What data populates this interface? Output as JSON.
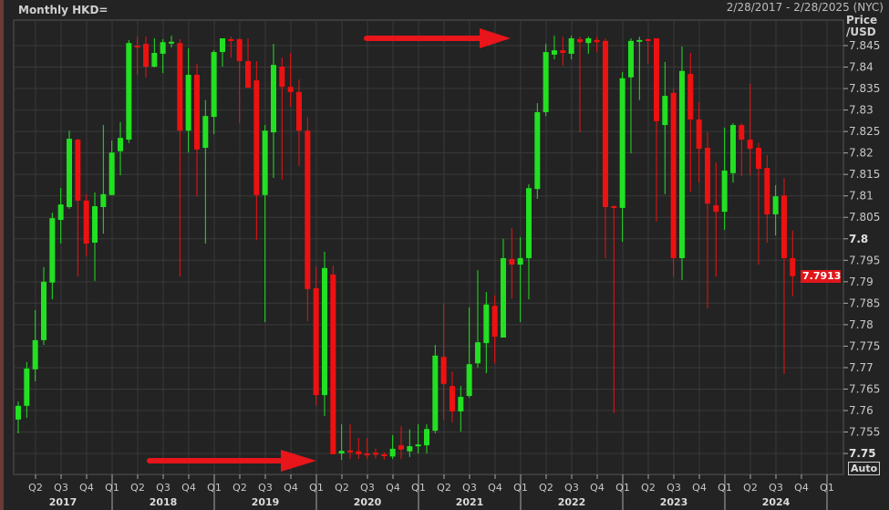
{
  "header": {
    "title": "Monthly HKD=",
    "date_range": "2/28/2017 - 2/28/2025 (NYC)"
  },
  "chart_data": {
    "type": "candlestick",
    "title": "Monthly HKD=",
    "ylabel": "Price /USD",
    "ylabel_lines": [
      "Price",
      "/USD"
    ],
    "ylim": [
      7.7475,
      7.8475
    ],
    "yticks": [
      "7.845",
      "7.84",
      "7.835",
      "7.83",
      "7.825",
      "7.82",
      "7.815",
      "7.81",
      "7.805",
      "7.8",
      "7.795",
      "7.79",
      "7.785",
      "7.78",
      "7.775",
      "7.77",
      "7.765",
      "7.76",
      "7.755",
      "7.75"
    ],
    "bold_yticks": [
      "7.8",
      "7.75"
    ],
    "last_price": "7.7913",
    "auto_label": "Auto",
    "quarter_labels": [
      "Q2",
      "Q3",
      "Q4",
      "Q1",
      "Q2",
      "Q3",
      "Q4",
      "Q1",
      "Q2",
      "Q3",
      "Q4",
      "Q1",
      "Q2",
      "Q3",
      "Q4",
      "Q1",
      "Q2",
      "Q3",
      "Q4",
      "Q1",
      "Q2",
      "Q3",
      "Q4",
      "Q1",
      "Q2",
      "Q3",
      "Q4",
      "Q1",
      "Q2",
      "Q3",
      "Q4",
      "Q1"
    ],
    "year_labels": [
      "2017",
      "2018",
      "2019",
      "2020",
      "2021",
      "2022",
      "2023",
      "2024"
    ],
    "grid": true,
    "colors": {
      "up": "#22e022",
      "down": "#ee1111",
      "background": "#232323",
      "grid": "#3a3a3a",
      "arrow": "#e8151a"
    },
    "ohlc_fields": [
      "open",
      "high",
      "low",
      "close"
    ],
    "ohlc": [
      [
        7.7579,
        7.7621,
        7.7547,
        7.7611
      ],
      [
        7.7611,
        7.7713,
        7.7583,
        7.7698
      ],
      [
        7.7696,
        7.7834,
        7.7668,
        7.7764
      ],
      [
        7.7764,
        7.7934,
        7.7753,
        7.79
      ],
      [
        7.7898,
        7.8061,
        7.7859,
        7.8048
      ],
      [
        7.8044,
        7.8118,
        7.7989,
        7.808
      ],
      [
        7.8074,
        7.8252,
        7.807,
        7.8233
      ],
      [
        7.8231,
        7.8233,
        7.7912,
        7.8089
      ],
      [
        7.8089,
        7.8104,
        7.7959,
        7.7989
      ],
      [
        7.7991,
        7.8108,
        7.7902,
        7.8076
      ],
      [
        7.8074,
        7.8265,
        7.8012,
        7.8104
      ],
      [
        7.8102,
        7.8229,
        7.8102,
        7.8201
      ],
      [
        7.8204,
        7.8272,
        7.8148,
        7.8235
      ],
      [
        7.8231,
        7.8463,
        7.8223,
        7.8456
      ],
      [
        7.845,
        7.8471,
        7.8382,
        7.8448
      ],
      [
        7.8454,
        7.8471,
        7.8376,
        7.8401
      ],
      [
        7.8401,
        7.8467,
        7.8399,
        7.8433
      ],
      [
        7.8431,
        7.8465,
        7.8386,
        7.8458
      ],
      [
        7.8455,
        7.8473,
        7.8446,
        7.8459
      ],
      [
        7.8456,
        7.8465,
        7.7912,
        7.8252
      ],
      [
        7.8252,
        7.8444,
        7.8201,
        7.8382
      ],
      [
        7.8382,
        7.8408,
        7.8099,
        7.8208
      ],
      [
        7.8212,
        7.8323,
        7.7989,
        7.8286
      ],
      [
        7.8284,
        7.8439,
        7.8244,
        7.8435
      ],
      [
        7.8435,
        7.8467,
        7.8401,
        7.8467
      ],
      [
        7.8465,
        7.8471,
        7.8422,
        7.8463
      ],
      [
        7.8465,
        7.8467,
        7.8269,
        7.8414
      ],
      [
        7.8414,
        7.8467,
        7.8352,
        7.8352
      ],
      [
        7.8369,
        7.8414,
        7.7997,
        7.8102
      ],
      [
        7.8102,
        7.8265,
        7.7806,
        7.8252
      ],
      [
        7.8248,
        7.8454,
        7.8142,
        7.8405
      ],
      [
        7.8401,
        7.8422,
        7.8138,
        7.8354
      ],
      [
        7.8354,
        7.8433,
        7.8308,
        7.8342
      ],
      [
        7.8342,
        7.8371,
        7.817,
        7.8252
      ],
      [
        7.8252,
        7.8284,
        7.7808,
        7.7883
      ],
      [
        7.7885,
        7.7934,
        7.7611,
        7.7636
      ],
      [
        7.7636,
        7.797,
        7.7587,
        7.7932
      ],
      [
        7.7917,
        7.7938,
        7.7498,
        7.7498
      ],
      [
        7.75,
        7.7568,
        7.7485,
        7.7506
      ],
      [
        7.7507,
        7.7568,
        7.7487,
        7.7505
      ],
      [
        7.7505,
        7.7536,
        7.7487,
        7.7498
      ],
      [
        7.75,
        7.7536,
        7.7487,
        7.7497
      ],
      [
        7.7502,
        7.7512,
        7.7488,
        7.7497
      ],
      [
        7.7498,
        7.7503,
        7.7486,
        7.7495
      ],
      [
        7.7493,
        7.7543,
        7.7487,
        7.7511
      ],
      [
        7.7519,
        7.7564,
        7.7487,
        7.7509
      ],
      [
        7.7505,
        7.7556,
        7.7492,
        7.7517
      ],
      [
        7.7517,
        7.7568,
        7.75,
        7.7521
      ],
      [
        7.7519,
        7.7568,
        7.75,
        7.7557
      ],
      [
        7.7553,
        7.7753,
        7.7547,
        7.7728
      ],
      [
        7.7725,
        7.7849,
        7.7579,
        7.7662
      ],
      [
        7.7657,
        7.7691,
        7.7572,
        7.7598
      ],
      [
        7.7598,
        7.7657,
        7.7551,
        7.7632
      ],
      [
        7.7634,
        7.784,
        7.763,
        7.7708
      ],
      [
        7.771,
        7.7927,
        7.77,
        7.7759
      ],
      [
        7.7757,
        7.7876,
        7.7687,
        7.7847
      ],
      [
        7.7844,
        7.7868,
        7.771,
        7.7772
      ],
      [
        7.777,
        7.8,
        7.777,
        7.7955
      ],
      [
        7.7953,
        7.8025,
        7.7861,
        7.794
      ],
      [
        7.794,
        7.8004,
        7.7806,
        7.7955
      ],
      [
        7.7955,
        7.8127,
        7.7859,
        7.8118
      ],
      [
        7.8116,
        7.8316,
        7.8093,
        7.8295
      ],
      [
        7.8295,
        7.8454,
        7.8286,
        7.8435
      ],
      [
        7.8429,
        7.8473,
        7.8418,
        7.8439
      ],
      [
        7.8439,
        7.8471,
        7.8403,
        7.8433
      ],
      [
        7.8431,
        7.8473,
        7.8418,
        7.8467
      ],
      [
        7.8465,
        7.8471,
        7.8248,
        7.8458
      ],
      [
        7.8456,
        7.8471,
        7.8431,
        7.8467
      ],
      [
        7.8463,
        7.8471,
        7.8435,
        7.8458
      ],
      [
        7.8461,
        7.8467,
        7.7955,
        7.8074
      ],
      [
        7.8076,
        7.8078,
        7.7594,
        7.8074
      ],
      [
        7.8072,
        7.8388,
        7.7993,
        7.8374
      ],
      [
        7.8376,
        7.8467,
        7.8199,
        7.8461
      ],
      [
        7.8459,
        7.8471,
        7.8323,
        7.8463
      ],
      [
        7.8465,
        7.8467,
        7.8408,
        7.8463
      ],
      [
        7.8467,
        7.8467,
        7.804,
        7.8274
      ],
      [
        7.8265,
        7.8412,
        7.8104,
        7.8333
      ],
      [
        7.834,
        7.835,
        7.7912,
        7.7955
      ],
      [
        7.7955,
        7.8448,
        7.7904,
        7.8391
      ],
      [
        7.8384,
        7.8433,
        7.811,
        7.8278
      ],
      [
        7.8278,
        7.8318,
        7.8131,
        7.821
      ],
      [
        7.8212,
        7.8248,
        7.7838,
        7.8082
      ],
      [
        7.8078,
        7.8178,
        7.7912,
        7.8063
      ],
      [
        7.8063,
        7.8259,
        7.8021,
        7.8159
      ],
      [
        7.8153,
        7.8269,
        7.8131,
        7.8265
      ],
      [
        7.8265,
        7.8269,
        7.8146,
        7.8231
      ],
      [
        7.8231,
        7.8361,
        7.8148,
        7.821
      ],
      [
        7.8212,
        7.8223,
        7.794,
        7.8163
      ],
      [
        7.8165,
        7.8195,
        7.7991,
        7.8057
      ],
      [
        7.8057,
        7.8125,
        7.8008,
        7.8099
      ],
      [
        7.8101,
        7.8142,
        7.7685,
        7.7955
      ],
      [
        7.7955,
        7.8019,
        7.7866,
        7.7913
      ]
    ]
  }
}
